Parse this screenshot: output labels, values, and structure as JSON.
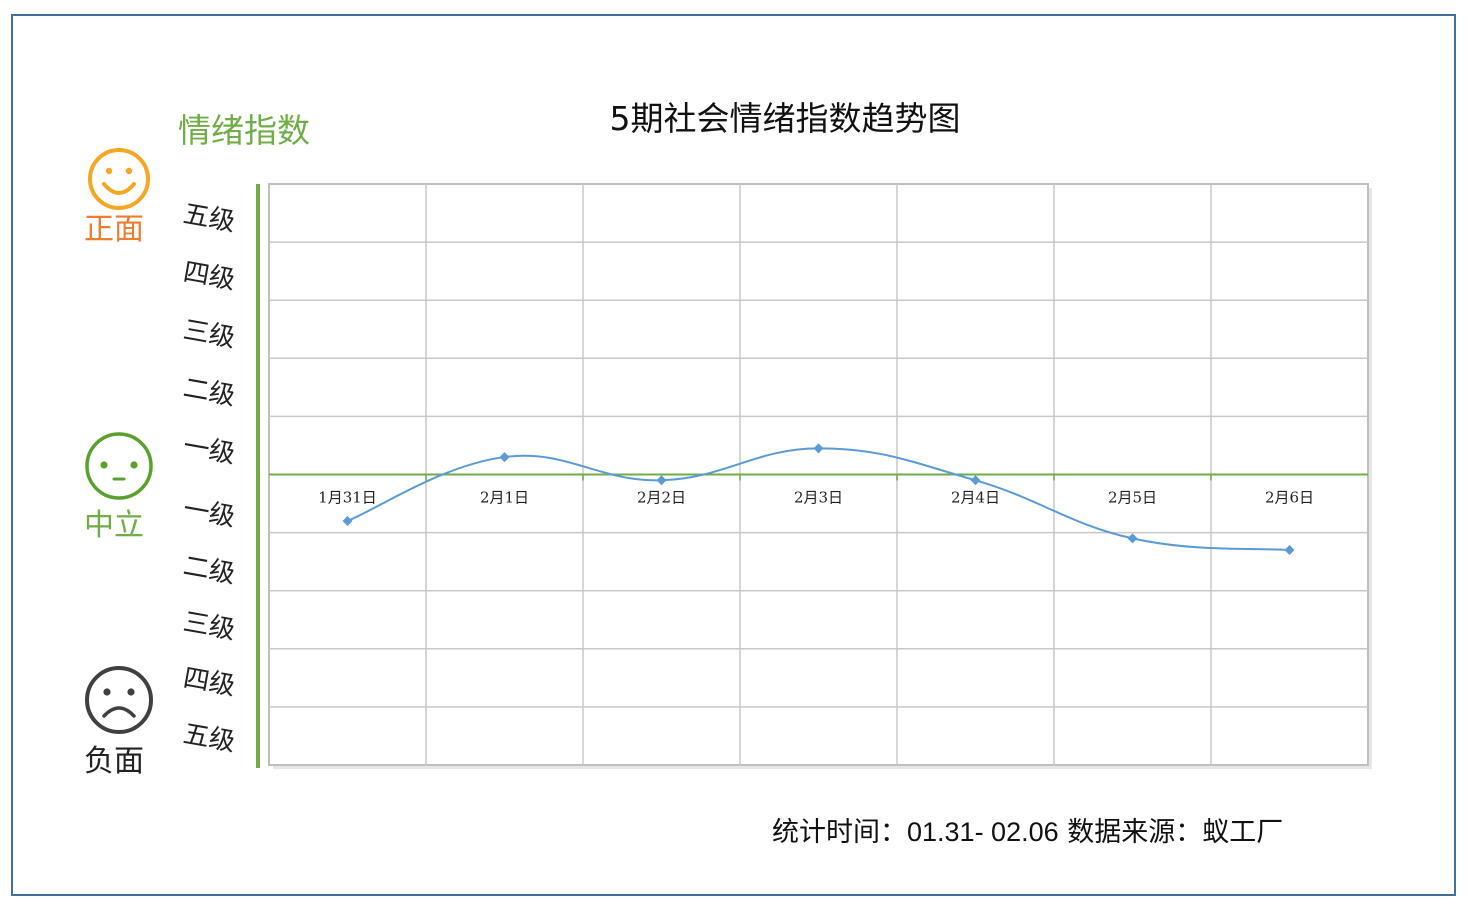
{
  "title": "5期社会情绪指数趋势图",
  "y_axis_title": "情绪指数",
  "moods": {
    "positive": {
      "label": "正面",
      "color": "#f5a623",
      "icon": "smiley-face-icon"
    },
    "neutral": {
      "label": "中立",
      "color": "#5aa02c",
      "icon": "neutral-face-icon"
    },
    "negative": {
      "label": "负面",
      "color": "#404040",
      "icon": "sad-face-icon"
    }
  },
  "y_ticks": [
    "五级",
    "四级",
    "三级",
    "二级",
    "一级",
    "一级",
    "二级",
    "三级",
    "四级",
    "五级"
  ],
  "footer": {
    "time_label": "统计时间：",
    "time_range": "01.31- 02.06",
    "source_label": " 数据来源：",
    "source": "蚁工厂"
  },
  "chart_data": {
    "type": "line",
    "title": "5期社会情绪指数趋势图",
    "ylabel": "情绪指数",
    "categories": [
      "1月31日",
      "2月1日",
      "2月2日",
      "2月3日",
      "2月4日",
      "2月5日",
      "2月6日"
    ],
    "series": [
      {
        "values": [
          -0.8,
          0.3,
          -0.1,
          0.45,
          -0.1,
          -1.1,
          -1.3
        ]
      }
    ],
    "ylim": [
      -5,
      5
    ],
    "grid": true,
    "line_color": "#5b9bd5",
    "zero_line_color": "#70ad47"
  }
}
